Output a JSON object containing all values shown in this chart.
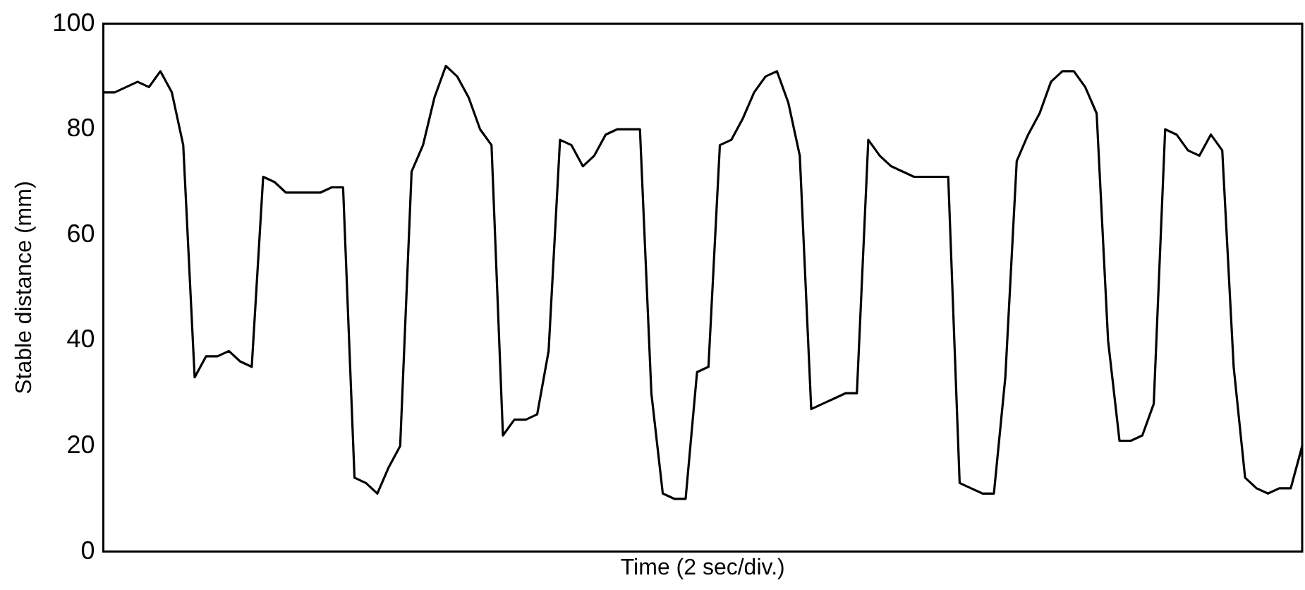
{
  "chart_data": {
    "type": "line",
    "xlabel": "Time (2 sec/div.)",
    "ylabel": "Stable distance (mm)",
    "categories": [
      null,
      null,
      null,
      null,
      null,
      null,
      null,
      null,
      null,
      null,
      null,
      null,
      null,
      null,
      null,
      null,
      null,
      null,
      null,
      null,
      null,
      null,
      null,
      null,
      null,
      null,
      null,
      null,
      null,
      null,
      null,
      null,
      null,
      null,
      null,
      null,
      null,
      null,
      null,
      null,
      null,
      null,
      null,
      null,
      null,
      null,
      null,
      null,
      null,
      null,
      null,
      null,
      null,
      null,
      null,
      null,
      null,
      null,
      null,
      null,
      null,
      null,
      null,
      null,
      null,
      null,
      null,
      null,
      null,
      null,
      null,
      null,
      null,
      null,
      null,
      null,
      null,
      null,
      null,
      null,
      null,
      null,
      null,
      null,
      null,
      null,
      null,
      null,
      null,
      null,
      null,
      null,
      null,
      null,
      null,
      null,
      null,
      null,
      null,
      null,
      null,
      null,
      null,
      null,
      null,
      null
    ],
    "series": [
      {
        "color": "#000000",
        "values": [
          87,
          87,
          88,
          89,
          88,
          91,
          87,
          77,
          33,
          37,
          37,
          38,
          36,
          35,
          71,
          70,
          68,
          68,
          68,
          68,
          69,
          69,
          14,
          13,
          11,
          16,
          20,
          72,
          77,
          86,
          92,
          90,
          86,
          80,
          77,
          22,
          25,
          25,
          26,
          38,
          78,
          77,
          73,
          75,
          79,
          80,
          80,
          80,
          30,
          11,
          10,
          10,
          34,
          35,
          77,
          78,
          82,
          87,
          90,
          91,
          85,
          75,
          27,
          28,
          29,
          30,
          30,
          78,
          75,
          73,
          72,
          71,
          71,
          71,
          71,
          13,
          12,
          11,
          11,
          33,
          74,
          79,
          83,
          89,
          91,
          91,
          88,
          83,
          40,
          21,
          21,
          22,
          28,
          80,
          79,
          76,
          75,
          79,
          76,
          35,
          14,
          12,
          11,
          12,
          12,
          20
        ]
      }
    ],
    "ylim": [
      0,
      100
    ],
    "yticks": [
      0,
      20,
      40,
      60,
      80,
      100
    ],
    "tick_labels": "y",
    "grid": false,
    "legend": false,
    "marker": "none",
    "line_style": "solid"
  }
}
